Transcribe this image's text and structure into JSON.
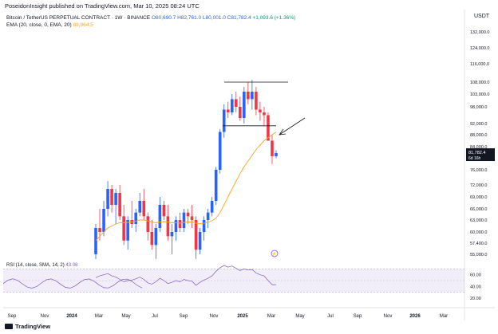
{
  "publisher": "PoseidonInsight published on TradingView.com, Mar 10, 2025 08:24 UTC",
  "header": {
    "symbol": "Bitcoin / TetherUS PERPETUAL CONTRACT · 1W · BINANCE",
    "o": "O80,690.7",
    "h": "H82,761.0",
    "l": "L80,001.0",
    "c": "C81,782.4",
    "change": "+1,093.6 (+1.36%)",
    "ema_label": "EMA (20, close, 0, EMA, 20)",
    "ema_value": "88,964.5"
  },
  "rsi": {
    "label": "RSI (14, close, SMA, 14, 2)",
    "value": "43.08"
  },
  "currency": "USDT",
  "price_tag": {
    "value": "81,782.4",
    "countdown": "6d 16h"
  },
  "brand": "TradingView",
  "colors": {
    "up": "#2962ff",
    "down": "#f23645",
    "ema": "#f5a623",
    "rsi": "#7e57c2"
  },
  "chart_data": {
    "type": "candlestick",
    "price_ticks": [
      "132,000.0",
      "124,000.0",
      "116,000.0",
      "108,000.0",
      "103,000.0",
      "98,000.0",
      "92,000.0",
      "88,000.0",
      "84,000.0",
      "76,000.0",
      "72,000.0",
      "69,000.0",
      "66,000.0",
      "63,000.0",
      "60,000.0",
      "57,400.0",
      "55,000.0"
    ],
    "rsi_ticks": [
      "60.00",
      "40.00",
      "20.00"
    ],
    "x_ticks": [
      "Sep",
      "Nov",
      "2024",
      "Mar",
      "May",
      "Jul",
      "Sep",
      "Nov",
      "2025",
      "Mar",
      "May",
      "Jul",
      "Sep",
      "Nov",
      "2026",
      "Mar"
    ],
    "candles": [
      [
        55000,
        62000,
        54000,
        61000
      ],
      [
        61000,
        66000,
        58000,
        60000
      ],
      [
        60000,
        68000,
        59000,
        66000
      ],
      [
        66000,
        73000,
        64000,
        71000
      ],
      [
        71000,
        72000,
        65000,
        67000
      ],
      [
        67000,
        71000,
        62000,
        70000
      ],
      [
        70000,
        72000,
        63000,
        64000
      ],
      [
        64000,
        67000,
        57000,
        58000
      ],
      [
        58000,
        64000,
        56000,
        63000
      ],
      [
        63000,
        68000,
        61000,
        62000
      ],
      [
        62000,
        66000,
        60000,
        65000
      ],
      [
        65000,
        70000,
        64000,
        68000
      ],
      [
        68000,
        71000,
        63000,
        64000
      ],
      [
        64000,
        65000,
        58000,
        60000
      ],
      [
        60000,
        63000,
        56000,
        57000
      ],
      [
        57000,
        62000,
        54000,
        61000
      ],
      [
        61000,
        69000,
        60000,
        67000
      ],
      [
        67000,
        68000,
        63000,
        64000
      ],
      [
        64000,
        67000,
        58000,
        59000
      ],
      [
        59000,
        62000,
        55000,
        60000
      ],
      [
        60000,
        64000,
        58000,
        63000
      ],
      [
        63000,
        65000,
        60000,
        61000
      ],
      [
        61000,
        66000,
        60000,
        65000
      ],
      [
        65000,
        66000,
        62000,
        64000
      ],
      [
        64000,
        67000,
        61000,
        63000
      ],
      [
        63000,
        64000,
        54000,
        56000
      ],
      [
        56000,
        61000,
        55000,
        60000
      ],
      [
        60000,
        64000,
        58000,
        63000
      ],
      [
        63000,
        66000,
        61000,
        65000
      ],
      [
        65000,
        69000,
        64000,
        68000
      ],
      [
        68000,
        77000,
        67000,
        76000
      ],
      [
        76000,
        90000,
        75000,
        89000
      ],
      [
        89000,
        99000,
        87000,
        97000
      ],
      [
        97000,
        100000,
        94000,
        96000
      ],
      [
        96000,
        103000,
        95000,
        101000
      ],
      [
        101000,
        104000,
        96000,
        98000
      ],
      [
        98000,
        102000,
        93000,
        94000
      ],
      [
        94000,
        106000,
        92000,
        104000
      ],
      [
        104000,
        108000,
        99000,
        101000
      ],
      [
        101000,
        109000,
        97000,
        104000
      ],
      [
        104000,
        106000,
        95000,
        97000
      ],
      [
        97000,
        100000,
        93000,
        96000
      ],
      [
        96000,
        98000,
        91000,
        95000
      ],
      [
        95000,
        96000,
        86000,
        86000
      ],
      [
        86000,
        88000,
        78000,
        80700
      ],
      [
        80700,
        82761,
        80001,
        81782
      ]
    ],
    "ema": [
      58000,
      59000,
      60000,
      61000,
      61500,
      62000,
      62300,
      62300,
      62400,
      62500,
      62700,
      63000,
      63000,
      62800,
      62500,
      62300,
      62500,
      62600,
      62500,
      62300,
      62300,
      62200,
      62400,
      62500,
      62500,
      62200,
      62100,
      62200,
      62400,
      62800,
      63500,
      65000,
      67000,
      69000,
      71000,
      73000,
      75000,
      77000,
      79000,
      81000,
      83000,
      84500,
      86000,
      87000,
      88000,
      88964
    ],
    "rsi": [
      55,
      58,
      60,
      62,
      58,
      56,
      52,
      48,
      50,
      51,
      53,
      56,
      52,
      46,
      44,
      48,
      54,
      50,
      45,
      47,
      50,
      48,
      52,
      50,
      49,
      42,
      47,
      51,
      54,
      58,
      66,
      72,
      76,
      73,
      75,
      71,
      67,
      70,
      68,
      69,
      63,
      60,
      58,
      50,
      43,
      43
    ]
  }
}
